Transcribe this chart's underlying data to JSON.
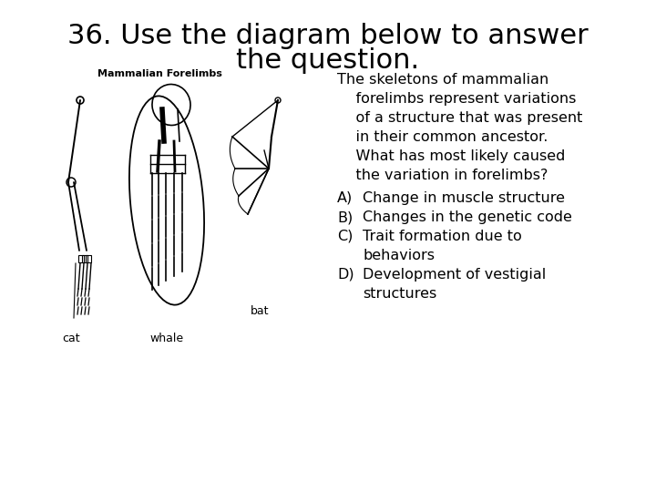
{
  "title_line1": "36. Use the diagram below to answer",
  "title_line2": "the question.",
  "title_fontsize": 22,
  "background_color": "#ffffff",
  "image_label": "Mammalian Forelimbs",
  "animal_labels": [
    "cat",
    "whale",
    "bat"
  ],
  "question_lines": [
    "The skeletons of mammalian",
    "    forelimbs represent variations",
    "    of a structure that was present",
    "    in their common ancestor.",
    "    What has most likely caused",
    "    the variation in forelimbs?"
  ],
  "answers": [
    [
      "A)",
      "Change in muscle structure",
      ""
    ],
    [
      "B)",
      "Changes in the genetic code",
      ""
    ],
    [
      "C)",
      "Trait formation due to",
      "behaviors"
    ],
    [
      "D)",
      "Development of vestigial",
      "structures"
    ]
  ],
  "text_fontsize": 11.5,
  "label_fontsize": 9
}
